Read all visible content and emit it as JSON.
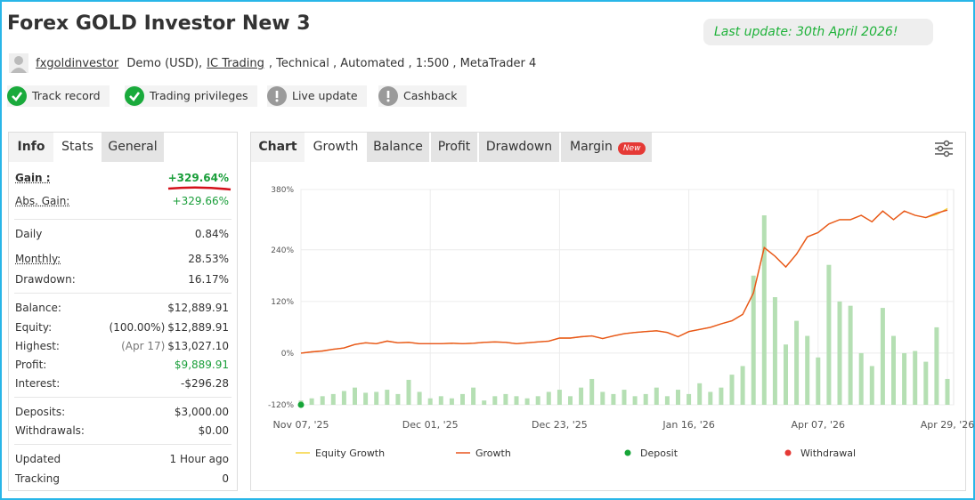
{
  "header": {
    "title": "Forex GOLD Investor New 3",
    "last_update": "Last update: 30th April 2026!",
    "user": "fxgoldinvestor",
    "details": [
      "Demo (USD),",
      "IC Trading",
      ", Technical , Automated , 1:500 , MetaTrader 4"
    ],
    "badges": [
      {
        "label": "Track record",
        "status": "ok"
      },
      {
        "label": "Trading privileges",
        "status": "ok"
      },
      {
        "label": "Live update",
        "status": "info"
      },
      {
        "label": "Cashback",
        "status": "info"
      }
    ]
  },
  "stats": {
    "tabs": [
      "Info",
      "Stats",
      "General"
    ],
    "groups": [
      [
        {
          "label": "Gain :",
          "value": "+329.64%",
          "color": "#1a9e3a"
        },
        {
          "label": "Abs. Gain:",
          "value": "+329.66%",
          "color": "#1a9e3a"
        }
      ],
      [
        {
          "label": "Daily",
          "value": "0.84%"
        },
        {
          "label": "Monthly:",
          "value": "28.53%"
        },
        {
          "label": "Drawdown:",
          "value": "16.17%"
        }
      ],
      [
        {
          "label": "Balance:",
          "value": "$12,889.91"
        },
        {
          "label": "Equity:",
          "note": "(100.00%)",
          "value": "$12,889.91"
        },
        {
          "label": "Highest:",
          "note": "(Apr 17)",
          "value": "$13,027.10"
        },
        {
          "label": "Profit:",
          "value": "$9,889.91",
          "color": "#1a9e3a"
        },
        {
          "label": "Interest:",
          "value": "-$296.28"
        }
      ],
      [
        {
          "label": "Deposits:",
          "value": "$3,000.00"
        },
        {
          "label": "Withdrawals:",
          "value": "$0.00"
        }
      ],
      [
        {
          "label": "Updated",
          "value": "1 Hour ago"
        },
        {
          "label": "Tracking",
          "value": "0"
        }
      ]
    ]
  },
  "chart_tabs": {
    "label": "Chart",
    "tabs": [
      "Growth",
      "Balance",
      "Profit",
      "Drawdown",
      "Margin"
    ],
    "badge": "New"
  },
  "chart_data": {
    "type": "line",
    "categories": [
      "Nov 07, '25",
      null,
      null,
      null,
      null,
      null,
      null,
      null,
      null,
      null,
      null,
      null,
      "Dec 01, '25",
      null,
      null,
      null,
      null,
      null,
      null,
      null,
      null,
      null,
      null,
      null,
      "Dec 23, '25",
      null,
      null,
      null,
      null,
      null,
      null,
      null,
      null,
      null,
      null,
      null,
      "Jan 16, '26",
      null,
      null,
      null,
      null,
      null,
      null,
      null,
      null,
      null,
      null,
      null,
      "Apr 07, '26",
      null,
      null,
      null,
      null,
      null,
      null,
      null,
      null,
      null,
      null,
      null,
      "Apr 29, '26"
    ],
    "series": [
      {
        "name": "Equity Growth",
        "color": "#f5d33a",
        "values": [
          0,
          3,
          5,
          9,
          12,
          20,
          24,
          22,
          28,
          24,
          25,
          22,
          22,
          22,
          23,
          22,
          23,
          25,
          26,
          25,
          22,
          24,
          26,
          28,
          35,
          35,
          38,
          40,
          34,
          40,
          45,
          48,
          50,
          52,
          48,
          38,
          50,
          55,
          60,
          68,
          75,
          90,
          140,
          245,
          225,
          200,
          230,
          270,
          280,
          300,
          310,
          310,
          320,
          305,
          330,
          310,
          330,
          320,
          315,
          322,
          336
        ]
      },
      {
        "name": "Growth",
        "color": "#e8541e",
        "values": [
          0,
          3,
          5,
          9,
          12,
          20,
          24,
          22,
          28,
          24,
          25,
          22,
          22,
          22,
          23,
          22,
          23,
          25,
          26,
          25,
          22,
          24,
          26,
          28,
          35,
          35,
          38,
          40,
          34,
          40,
          45,
          48,
          50,
          52,
          48,
          38,
          50,
          55,
          60,
          68,
          75,
          90,
          140,
          245,
          225,
          200,
          230,
          270,
          280,
          300,
          310,
          310,
          320,
          305,
          330,
          310,
          330,
          320,
          315,
          325,
          332
        ]
      },
      {
        "type": "bar",
        "color": "#b5dfb3",
        "values": [
          -110,
          -105,
          -100,
          -95,
          -88,
          -80,
          -92,
          -90,
          -85,
          -95,
          -62,
          -90,
          -105,
          -100,
          -105,
          -95,
          -80,
          -110,
          -100,
          -95,
          -100,
          -105,
          -100,
          -90,
          -85,
          -100,
          -80,
          -60,
          -90,
          -95,
          -85,
          -100,
          -95,
          -80,
          -100,
          -85,
          -95,
          -70,
          -90,
          -80,
          -50,
          -30,
          180,
          320,
          130,
          20,
          75,
          40,
          -10,
          205,
          120,
          110,
          0,
          -30,
          105,
          40,
          0,
          5,
          -20,
          60,
          -60
        ]
      }
    ],
    "ylim": [
      -120,
      380
    ],
    "yticks": [
      {
        "value": -120,
        "label": "-120%"
      },
      {
        "value": 0,
        "label": "0%"
      },
      {
        "value": 120,
        "label": "120%"
      },
      {
        "value": 240,
        "label": "240%"
      },
      {
        "value": 380,
        "label": "380%"
      }
    ],
    "grid": true,
    "legend_markers": [
      {
        "name": "Deposit",
        "color": "#17a538"
      },
      {
        "name": "Withdrawal",
        "color": "#e53935"
      }
    ]
  }
}
